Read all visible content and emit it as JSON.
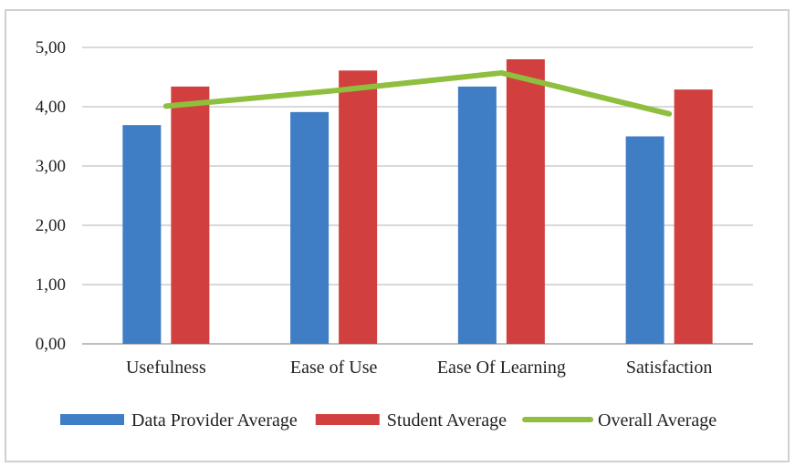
{
  "chart_data": {
    "type": "bar",
    "categories": [
      "Usefulness",
      "Ease of Use",
      "Ease Of Learning",
      "Satisfaction"
    ],
    "y_ticks": [
      "0,00",
      "1,00",
      "2,00",
      "3,00",
      "4,00",
      "5,00"
    ],
    "ylim": [
      0,
      5
    ],
    "grid": true,
    "legend_position": "bottom",
    "series": [
      {
        "name": "Data Provider Average",
        "kind": "bar",
        "color": "#3f7dc4",
        "values": [
          3.69,
          3.91,
          4.34,
          3.5
        ]
      },
      {
        "name": "Student Average",
        "kind": "bar",
        "color": "#d13f3f",
        "values": [
          4.34,
          4.61,
          4.8,
          4.29
        ]
      },
      {
        "name": "Overall Average",
        "kind": "line",
        "color": "#8ebf3f",
        "values": [
          4.01,
          4.27,
          4.57,
          3.88
        ]
      }
    ]
  }
}
